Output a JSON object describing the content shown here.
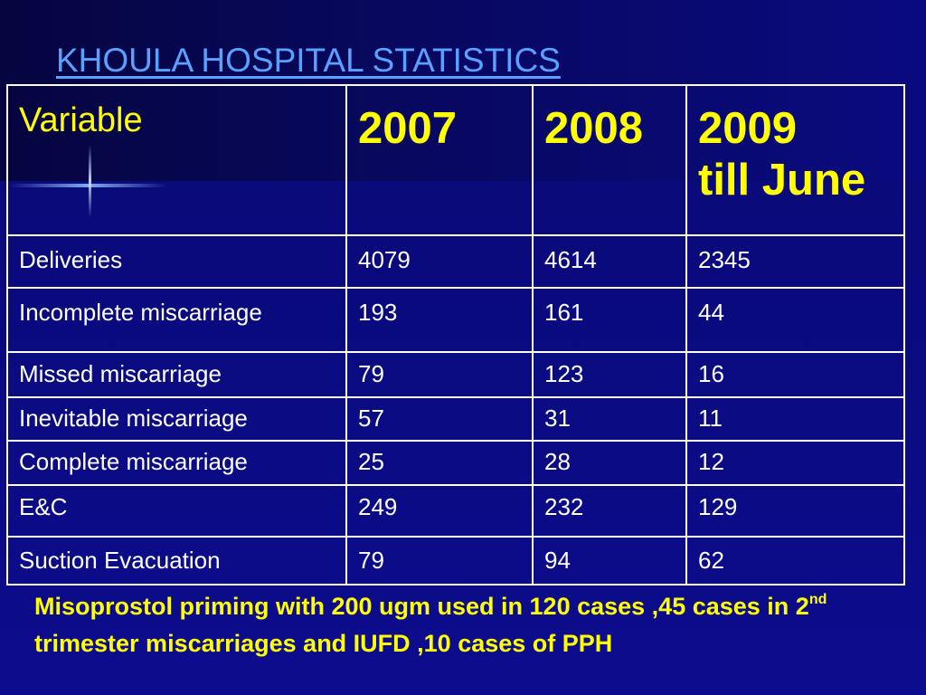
{
  "slide": {
    "title": "KHOULA HOSPITAL STATISTICS",
    "table": {
      "headers": {
        "variable": "Variable",
        "y2007": "2007",
        "y2008": "2008",
        "y2009_line1": "2009",
        "y2009_line2": "till June"
      },
      "rows": [
        {
          "label": "Deliveries",
          "v2007": "4079",
          "v2008": "4614",
          "v2009": "2345"
        },
        {
          "label": "Incomplete miscarriage",
          "v2007": "193",
          "v2008": "161",
          "v2009": "44"
        },
        {
          "label": "Missed miscarriage",
          "v2007": "79",
          "v2008": "123",
          "v2009": "16"
        },
        {
          "label": "Inevitable miscarriage",
          "v2007": "57",
          "v2008": "31",
          "v2009": "11"
        },
        {
          "label": "Complete miscarriage",
          "v2007": "25",
          "v2008": "28",
          "v2009": "12"
        },
        {
          "label": "E&C",
          "v2007": "249",
          "v2008": "232",
          "v2009": "129"
        },
        {
          "label": "Suction Evacuation",
          "v2007": "79",
          "v2008": "94",
          "v2009": "62"
        }
      ]
    },
    "note": {
      "part1": "Misoprostol priming with 200 ugm  used  in 120 cases ,45 cases in 2",
      "superscript": "nd",
      "part2": " trimester miscarriages and IUFD ,10 cases of PPH"
    },
    "colors": {
      "background": "#0a0a78",
      "title": "#5aa0ff",
      "header_text": "#ffff00",
      "cell_text": "#ffffff",
      "note_text": "#ffff00",
      "grid": "#ffffff"
    }
  }
}
